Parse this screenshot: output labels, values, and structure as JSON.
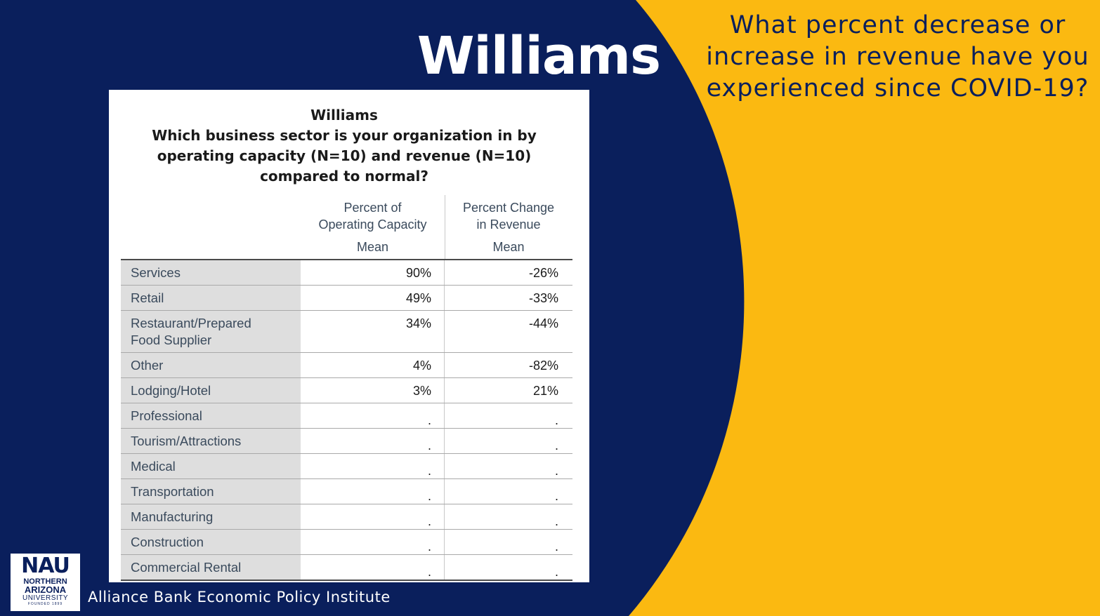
{
  "slide": {
    "title": "Williams",
    "question_lines": [
      "What percent decrease or",
      "increase in revenue have you",
      "experienced since COVID-19?"
    ],
    "footer": "Alliance Bank Economic Policy Institute",
    "colors": {
      "navy": "#0a1f5c",
      "gold": "#fbb911"
    }
  },
  "logo": {
    "abbr": "NAU",
    "line1": "NORTHERN",
    "line2": "ARIZONA",
    "line3": "UNIVERSITY",
    "line4": "FOUNDED 1899"
  },
  "table": {
    "title_lines": [
      "Williams",
      "Which business sector is your organization in by",
      "operating capacity (N=10) and revenue (N=10)",
      "compared to normal?"
    ],
    "col1_header_lines": [
      "Percent of",
      "Operating Capacity"
    ],
    "col2_header_lines": [
      "Percent Change",
      "in Revenue"
    ],
    "col1_sub": "Mean",
    "col2_sub": "Mean",
    "rows": [
      {
        "label_lines": [
          "Services"
        ],
        "capacity": "90%",
        "revenue": "-26%"
      },
      {
        "label_lines": [
          "Retail"
        ],
        "capacity": "49%",
        "revenue": "-33%"
      },
      {
        "label_lines": [
          "Restaurant/Prepared",
          "Food Supplier"
        ],
        "capacity": "34%",
        "revenue": "-44%"
      },
      {
        "label_lines": [
          "Other"
        ],
        "capacity": "4%",
        "revenue": "-82%"
      },
      {
        "label_lines": [
          "Lodging/Hotel"
        ],
        "capacity": "3%",
        "revenue": "21%"
      },
      {
        "label_lines": [
          "Professional"
        ],
        "capacity": ".",
        "revenue": "."
      },
      {
        "label_lines": [
          "Tourism/Attractions"
        ],
        "capacity": ".",
        "revenue": "."
      },
      {
        "label_lines": [
          "Medical"
        ],
        "capacity": ".",
        "revenue": "."
      },
      {
        "label_lines": [
          "Transportation"
        ],
        "capacity": ".",
        "revenue": "."
      },
      {
        "label_lines": [
          "Manufacturing"
        ],
        "capacity": ".",
        "revenue": "."
      },
      {
        "label_lines": [
          "Construction"
        ],
        "capacity": ".",
        "revenue": "."
      },
      {
        "label_lines": [
          "Commercial Rental"
        ],
        "capacity": ".",
        "revenue": "."
      }
    ]
  }
}
